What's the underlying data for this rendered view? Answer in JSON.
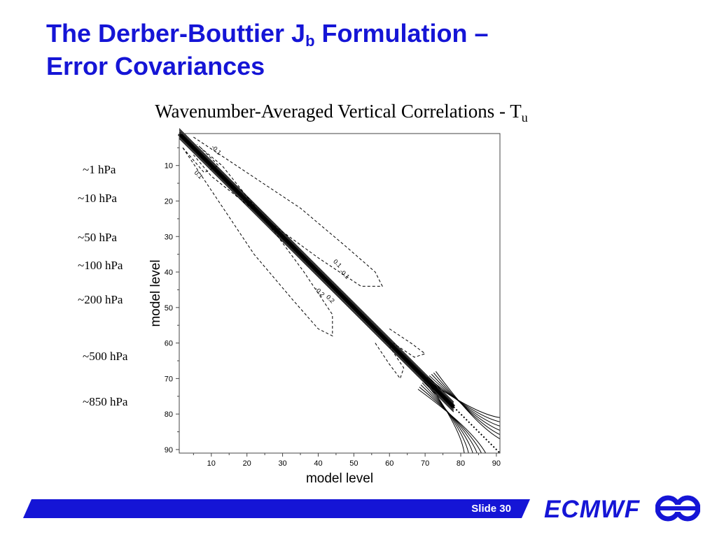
{
  "slide": {
    "title_line1_pre": "The Derber-Bouttier J",
    "title_sub": "b",
    "title_line1_post": " Formulation –",
    "title_line2": "Error Covariances",
    "subtitle_main": "Wavenumber-Averaged Vertical Correlations - T",
    "subtitle_sub": "u"
  },
  "pressure_labels": [
    "~1 hPa",
    "~10 hPa",
    "~50 hPa",
    "~100 hPa",
    "~200 hPa",
    "~500 hPa",
    "~850 hPa"
  ],
  "footer": {
    "slide_label": "Slide 30",
    "brand": "ECMWF"
  },
  "colors": {
    "accent": "#1515d6",
    "text": "#000000"
  },
  "icons": {
    "logo": "ecmwf-logo-icon"
  },
  "chart_data": {
    "type": "contour",
    "xlabel": "model level",
    "ylabel": "model level",
    "xlim": [
      1,
      91
    ],
    "ylim": [
      1,
      91
    ],
    "y_inverted": true,
    "x_ticks": [
      10,
      20,
      30,
      40,
      50,
      60,
      70,
      80,
      90
    ],
    "y_ticks": [
      10,
      20,
      30,
      40,
      50,
      60,
      70,
      80,
      90
    ],
    "contour_labels": [
      "0.1",
      "-0.1",
      "-0.2",
      "0.2",
      "-0.1",
      "0.1"
    ],
    "diagonal": {
      "x": [
        1,
        91
      ],
      "y": [
        1,
        91
      ]
    }
  }
}
